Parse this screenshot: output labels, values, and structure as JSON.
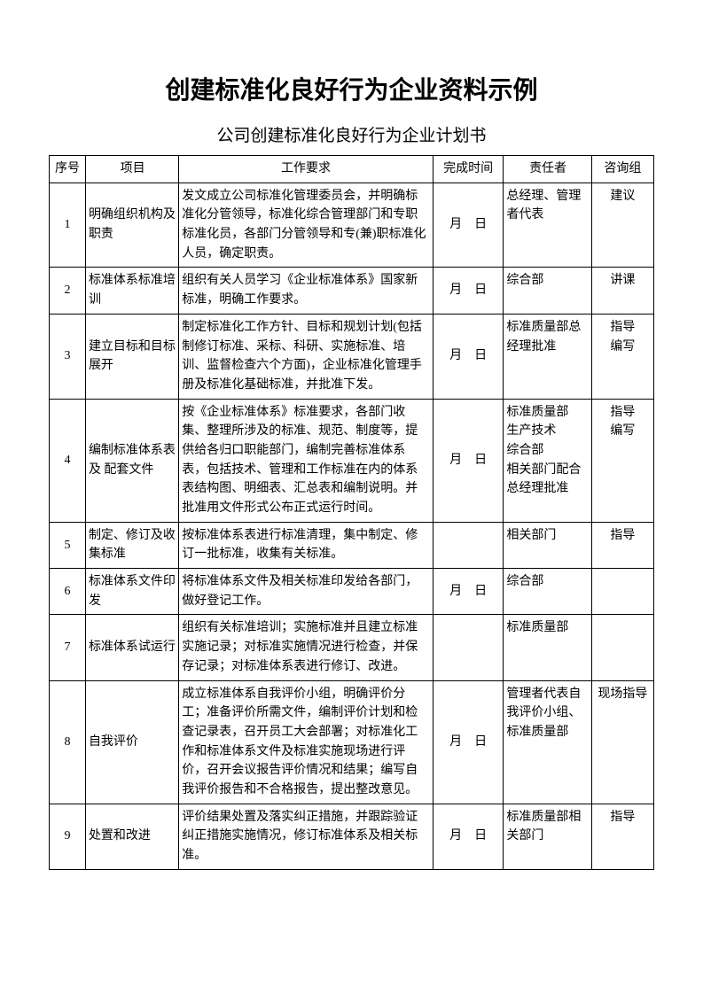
{
  "title": "创建标准化良好行为企业资料示例",
  "subtitle": "公司创建标准化良好行为企业计划书",
  "headers": {
    "num": "序号",
    "item": "项目",
    "req": "工作要求",
    "time": "完成时间",
    "resp": "责任者",
    "consult": "咨询组"
  },
  "rows": [
    {
      "num": "1",
      "item": "明确组织机构及职责",
      "req": "发文成立公司标准化管理委员会，并明确标准化分管领导，标准化综合管理部门和专职标准化员，各部门分管领导和专(兼)职标准化人员，确定职责。",
      "time": "月　日",
      "resp": "总经理、管理者代表",
      "consult": "建议"
    },
    {
      "num": "2",
      "item": "标准体系标准培训",
      "req": "组织有关人员学习《企业标准体系》国家新标准，明确工作要求。",
      "time": "月　日",
      "resp": "综合部",
      "consult": "讲课"
    },
    {
      "num": "3",
      "item": "建立目标和目标展开",
      "req": "制定标准化工作方针、目标和规划计划(包括制修订标准、采标、科研、实施标准、培训、监督检查六个方面)，企业标准化管理手册及标准化基础标准，并批准下发。",
      "time": "月　日",
      "resp": "标准质量部总经理批准",
      "consult": "指导\n编写"
    },
    {
      "num": "4",
      "item": "编制标准体系表及 配套文件",
      "req": "按《企业标准体系》标准要求，各部门收集、整理所涉及的标准、规范、制度等，提供给各归口职能部门，编制完善标准体系表，包括技术、管理和工作标准在内的体系表结构图、明细表、汇总表和编制说明。并批准用文件形式公布正式运行时间。",
      "time": "月　日",
      "resp": "标准质量部\n生产技术\n综合部\n相关部门配合\n总经理批准",
      "consult": "指导\n编写"
    },
    {
      "num": "5",
      "item": "制定、修订及收集标准",
      "req": "按标准体系表进行标准清理，集中制定、修订一批标准，收集有关标准。",
      "time": "",
      "resp": "相关部门",
      "consult": "指导"
    },
    {
      "num": "6",
      "item": "标准体系文件印发",
      "req": "将标准体系文件及相关标准印发给各部门，做好登记工作。",
      "time": "月　日",
      "resp": "综合部",
      "consult": ""
    },
    {
      "num": "7",
      "item": "标准体系试运行",
      "req": "组织有关标准培训；实施标准并且建立标准实施记录；对标准实施情况进行检查，并保存记录；对标准体系表进行修订、改进。",
      "time": "",
      "resp": "标准质量部",
      "consult": ""
    },
    {
      "num": "8",
      "item": "自我评价",
      "req": "成立标准体系自我评价小组，明确评价分工；准备评价所需文件，编制评价计划和检查记录表，召开员工大会部署；对标准化工作和标准体系文件及标准实施现场进行评价，召开会议报告评价情况和结果；编写自我评价报告和不合格报告，提出整改意见。",
      "time": "月　日",
      "resp": "管理者代表自我评价小组、标准质量部",
      "consult": "现场指导"
    },
    {
      "num": "9",
      "item": "处置和改进",
      "req": "评价结果处置及落实纠正措施，并跟踪验证纠正措施实施情况，修订标准体系及相关标准。",
      "time": "月　日",
      "resp": "标准质量部相关部门",
      "consult": "指导"
    }
  ]
}
